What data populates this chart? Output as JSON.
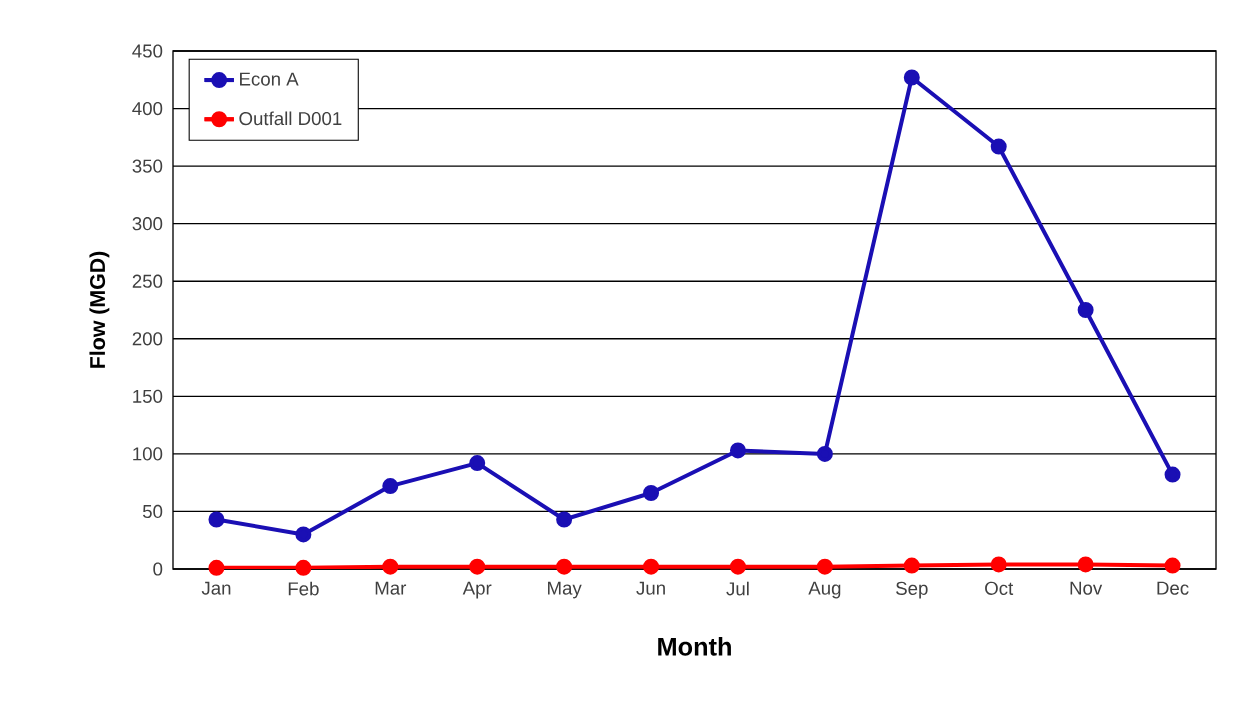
{
  "chart_data": {
    "type": "line",
    "xlabel": "Month",
    "ylabel": "Flow (MGD)",
    "categories": [
      "Jan",
      "Feb",
      "Mar",
      "Apr",
      "May",
      "Jun",
      "Jul",
      "Aug",
      "Sep",
      "Oct",
      "Nov",
      "Dec"
    ],
    "series": [
      {
        "name": "Econ A",
        "color": "#1a0fb4",
        "values": [
          43,
          30,
          72,
          92,
          43,
          66,
          103,
          100,
          427,
          367,
          225,
          82
        ]
      },
      {
        "name": "Outfall D001",
        "color": "#ff0000",
        "values": [
          1,
          1,
          2,
          2,
          2,
          2,
          2,
          2,
          3,
          4,
          4,
          3
        ]
      }
    ],
    "ylim": [
      0,
      450
    ],
    "yticks": [
      0,
      50,
      100,
      150,
      200,
      250,
      300,
      350,
      400,
      450
    ],
    "grid": "y",
    "legend": "top left",
    "marker": "circle",
    "line_style": "solid"
  }
}
